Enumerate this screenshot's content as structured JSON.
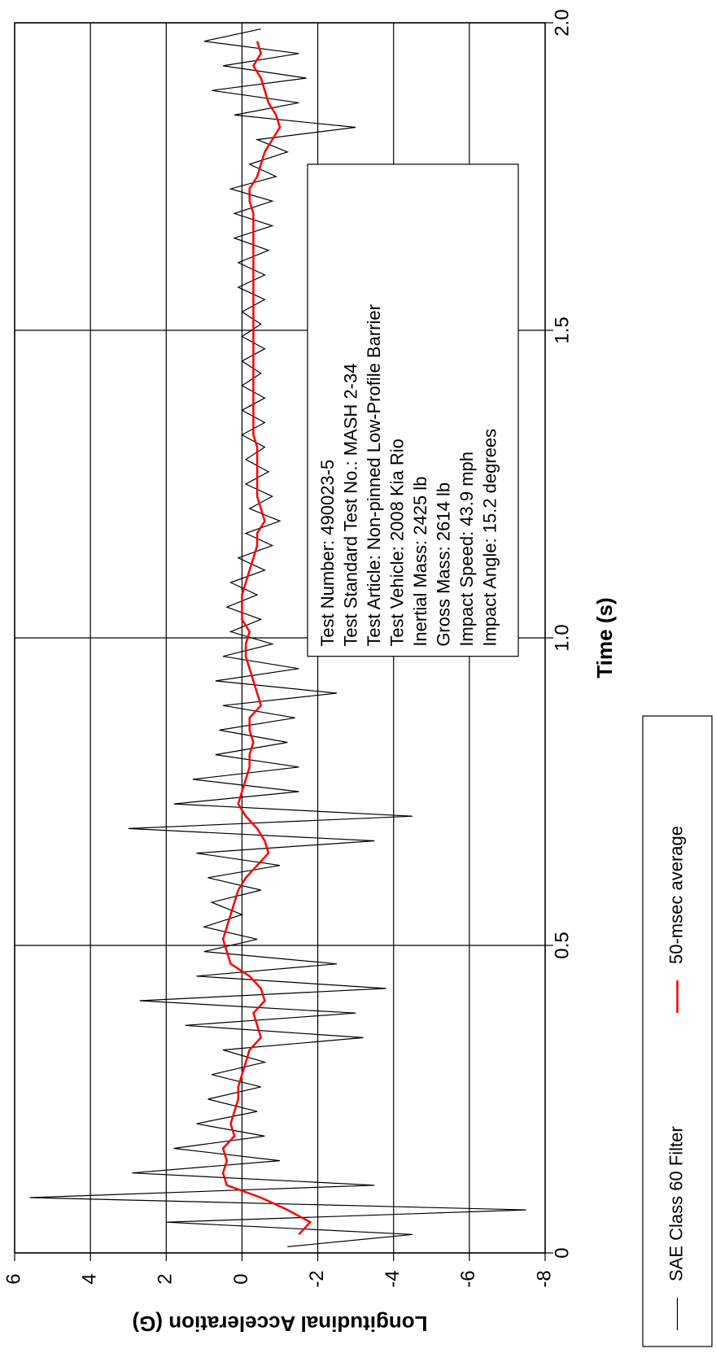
{
  "chart_data": {
    "type": "line",
    "xlabel": "Time (s)",
    "ylabel": "Longitudinal Acceleration (G)",
    "xlim": [
      0,
      2
    ],
    "xticks": [
      0,
      0.5,
      {
        "value": 1,
        "label": "1.0"
      },
      1.5,
      {
        "value": 2,
        "label": "2.0"
      }
    ],
    "ylim": [
      -8,
      6
    ],
    "yticks": [
      -8,
      -6,
      -4,
      -2,
      0,
      2,
      4,
      6
    ],
    "grid": true,
    "legend": "bottom-right",
    "annotation": [
      "Test Number: 490023-5",
      "Test Standard Test No.: MASH 2-34",
      "Test Article: Non-pinned Low-Profile Barrier",
      "Test Vehicle: 2008 Kia Rio",
      "Inertial Mass: 2425 lb",
      "Gross Mass: 2614 lb",
      "Impact Speed: 43.9 mph",
      "Impact Angle: 15.2 degrees"
    ],
    "series": [
      {
        "name": "SAE Class 60 Filter",
        "color": "#000000",
        "x": [
          0.01,
          0.03,
          0.05,
          0.07,
          0.09,
          0.11,
          0.13,
          0.15,
          0.17,
          0.19,
          0.21,
          0.23,
          0.25,
          0.27,
          0.29,
          0.31,
          0.33,
          0.35,
          0.37,
          0.39,
          0.41,
          0.43,
          0.45,
          0.47,
          0.49,
          0.51,
          0.53,
          0.55,
          0.57,
          0.59,
          0.61,
          0.63,
          0.65,
          0.67,
          0.69,
          0.71,
          0.73,
          0.75,
          0.77,
          0.79,
          0.81,
          0.83,
          0.85,
          0.87,
          0.89,
          0.91,
          0.93,
          0.95,
          0.97,
          0.99,
          1.01,
          1.03,
          1.05,
          1.07,
          1.09,
          1.11,
          1.13,
          1.15,
          1.17,
          1.19,
          1.21,
          1.23,
          1.25,
          1.27,
          1.29,
          1.31,
          1.33,
          1.35,
          1.37,
          1.39,
          1.41,
          1.43,
          1.45,
          1.47,
          1.49,
          1.51,
          1.53,
          1.55,
          1.57,
          1.59,
          1.61,
          1.63,
          1.65,
          1.67,
          1.69,
          1.71,
          1.73,
          1.75,
          1.77,
          1.79,
          1.81,
          1.83,
          1.85,
          1.87,
          1.89,
          1.91,
          1.93,
          1.95,
          1.97,
          1.99
        ],
        "values": [
          -1.2,
          -4.5,
          2.0,
          -7.5,
          5.6,
          -3.5,
          2.9,
          -1.0,
          1.8,
          -0.6,
          1.2,
          -0.4,
          0.9,
          -0.5,
          0.8,
          -0.6,
          0.5,
          -3.2,
          1.5,
          -3.0,
          2.7,
          -3.8,
          1.2,
          -2.5,
          1.0,
          -0.4,
          1.0,
          0.0,
          0.8,
          -0.5,
          0.9,
          -1.0,
          1.2,
          -3.5,
          3.0,
          -4.5,
          1.8,
          -1.5,
          1.3,
          -1.5,
          0.7,
          -1.2,
          0.6,
          -1.4,
          0.5,
          -2.5,
          0.7,
          -1.5,
          0.5,
          -0.8,
          0.3,
          -0.5,
          0.4,
          -0.4,
          0.3,
          -0.6,
          0.1,
          -0.8,
          -0.1,
          -1.0,
          -0.2,
          -0.8,
          -0.1,
          -0.7,
          -0.1,
          -0.6,
          0.0,
          -0.6,
          0.0,
          -0.6,
          0.0,
          -0.5,
          0.0,
          -0.6,
          0.0,
          -0.5,
          0.0,
          -0.6,
          0.1,
          -0.6,
          0.1,
          -0.7,
          0.2,
          -0.8,
          0.2,
          -0.8,
          0.3,
          -0.9,
          -0.2,
          -1.2,
          -0.4,
          -3.0,
          0.2,
          -1.5,
          0.8,
          -1.7,
          0.5,
          -1.5,
          1.0,
          -0.5
        ]
      },
      {
        "name": "50-msec average",
        "color": "#ff0000",
        "x": [
          0.03,
          0.05,
          0.07,
          0.09,
          0.11,
          0.13,
          0.15,
          0.17,
          0.19,
          0.21,
          0.23,
          0.25,
          0.27,
          0.29,
          0.31,
          0.33,
          0.35,
          0.37,
          0.39,
          0.41,
          0.43,
          0.45,
          0.47,
          0.49,
          0.51,
          0.53,
          0.55,
          0.57,
          0.59,
          0.61,
          0.63,
          0.65,
          0.67,
          0.69,
          0.71,
          0.73,
          0.75,
          0.77,
          0.79,
          0.81,
          0.83,
          0.85,
          0.87,
          0.89,
          0.91,
          0.93,
          0.95,
          0.97,
          0.99,
          1.01,
          1.03,
          1.05,
          1.07,
          1.09,
          1.11,
          1.13,
          1.15,
          1.17,
          1.19,
          1.21,
          1.23,
          1.25,
          1.27,
          1.29,
          1.31,
          1.33,
          1.35,
          1.37,
          1.39,
          1.41,
          1.43,
          1.45,
          1.47,
          1.49,
          1.51,
          1.53,
          1.55,
          1.57,
          1.59,
          1.61,
          1.63,
          1.65,
          1.67,
          1.69,
          1.71,
          1.73,
          1.75,
          1.77,
          1.79,
          1.81,
          1.83,
          1.85,
          1.87,
          1.89,
          1.91,
          1.93,
          1.95,
          1.97
        ],
        "values": [
          -1.5,
          -1.8,
          -1.2,
          -0.5,
          0.4,
          0.5,
          0.4,
          0.5,
          0.2,
          0.3,
          0.2,
          0.1,
          0.1,
          0.0,
          -0.1,
          -0.2,
          -0.5,
          -0.4,
          -0.3,
          -0.6,
          -0.5,
          -0.2,
          0.3,
          0.4,
          0.5,
          0.4,
          0.3,
          0.2,
          0.1,
          -0.1,
          -0.4,
          -0.7,
          -0.6,
          -0.4,
          -0.1,
          0.1,
          0.0,
          -0.1,
          -0.2,
          -0.2,
          -0.3,
          -0.2,
          -0.2,
          -0.5,
          -0.4,
          -0.3,
          -0.2,
          -0.1,
          -0.1,
          -0.2,
          0.0,
          0.0,
          0.0,
          -0.1,
          -0.2,
          -0.3,
          -0.4,
          -0.4,
          -0.6,
          -0.5,
          -0.4,
          -0.4,
          -0.4,
          -0.4,
          -0.4,
          -0.3,
          -0.3,
          -0.3,
          -0.3,
          -0.3,
          -0.3,
          -0.3,
          -0.3,
          -0.3,
          -0.3,
          -0.3,
          -0.3,
          -0.3,
          -0.3,
          -0.3,
          -0.3,
          -0.3,
          -0.3,
          -0.3,
          -0.2,
          -0.2,
          -0.4,
          -0.5,
          -0.6,
          -0.8,
          -1.0,
          -0.9,
          -0.7,
          -0.6,
          -0.5,
          -0.3,
          -0.5,
          -0.4
        ]
      }
    ]
  }
}
